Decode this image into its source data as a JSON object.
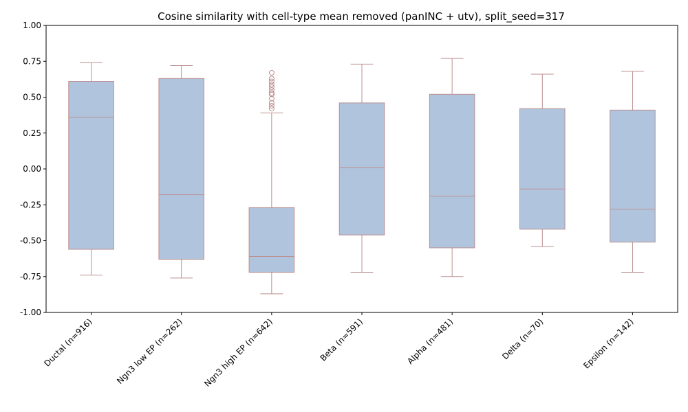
{
  "chart_data": {
    "type": "box",
    "title": "Cosine similarity with cell-type mean removed (panINC + utv), split_seed=317",
    "xlabel": "",
    "ylabel": "",
    "ylim": [
      -1.0,
      1.0
    ],
    "yticks": [
      "-1.00",
      "-0.75",
      "-0.50",
      "-0.25",
      "0.00",
      "0.25",
      "0.50",
      "0.75",
      "1.00"
    ],
    "ytick_values": [
      -1.0,
      -0.75,
      -0.5,
      -0.25,
      0.0,
      0.25,
      0.5,
      0.75,
      1.0
    ],
    "grid": false,
    "colors": {
      "box_fill": "#b0c4de",
      "box_edge": "#bc8f8f"
    },
    "categories": [
      "Ductal (n=916)",
      "Ngn3 low EP (n=262)",
      "Ngn3 high EP (n=642)",
      "Beta (n=591)",
      "Alpha (n=481)",
      "Delta (n=70)",
      "Epsilon (n=142)"
    ],
    "boxes": [
      {
        "whisker_low": -0.74,
        "q1": -0.56,
        "median": 0.36,
        "q3": 0.61,
        "whisker_high": 0.74,
        "outliers": []
      },
      {
        "whisker_low": -0.76,
        "q1": -0.63,
        "median": -0.18,
        "q3": 0.63,
        "whisker_high": 0.72,
        "outliers": []
      },
      {
        "whisker_low": -0.87,
        "q1": -0.72,
        "median": -0.61,
        "q3": -0.27,
        "whisker_high": 0.39,
        "outliers": [
          0.42,
          0.44,
          0.46,
          0.49,
          0.52,
          0.53,
          0.55,
          0.57,
          0.59,
          0.61,
          0.63,
          0.67
        ]
      },
      {
        "whisker_low": -0.72,
        "q1": -0.46,
        "median": 0.01,
        "q3": 0.46,
        "whisker_high": 0.73,
        "outliers": []
      },
      {
        "whisker_low": -0.75,
        "q1": -0.55,
        "median": -0.19,
        "q3": 0.52,
        "whisker_high": 0.77,
        "outliers": []
      },
      {
        "whisker_low": -0.54,
        "q1": -0.42,
        "median": -0.14,
        "q3": 0.42,
        "whisker_high": 0.66,
        "outliers": []
      },
      {
        "whisker_low": -0.72,
        "q1": -0.51,
        "median": -0.28,
        "q3": 0.41,
        "whisker_high": 0.68,
        "outliers": []
      }
    ]
  }
}
